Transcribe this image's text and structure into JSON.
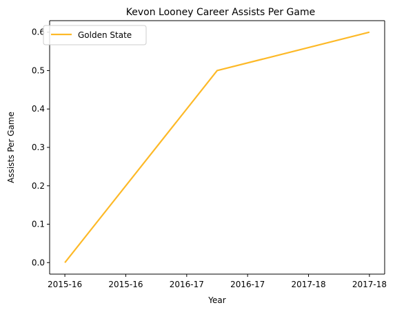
{
  "chart_data": {
    "type": "line",
    "title": "Kevon Looney Career Assists Per Game",
    "xlabel": "Year",
    "ylabel": "Assists Per Game",
    "x_tick_labels": [
      "2015-16",
      "2015-16",
      "2016-17",
      "2016-17",
      "2017-18",
      "2017-18"
    ],
    "x_tick_values": [
      0,
      0.4,
      0.8,
      1.2,
      1.6,
      2.0
    ],
    "xlim": [
      -0.1,
      2.1
    ],
    "y_ticks": [
      0.0,
      0.1,
      0.2,
      0.3,
      0.4,
      0.5,
      0.6
    ],
    "y_tick_labels": [
      "0.0",
      "0.1",
      "0.2",
      "0.3",
      "0.4",
      "0.5",
      "0.6"
    ],
    "ylim": [
      -0.03,
      0.63
    ],
    "grid": false,
    "legend_position": "upper-left",
    "series": [
      {
        "name": "Golden State",
        "color": "#fdb927",
        "x": [
          0,
          1,
          2
        ],
        "x_categories": [
          "2015-16",
          "2016-17",
          "2017-18"
        ],
        "y": [
          0.0,
          0.5,
          0.6
        ]
      }
    ]
  }
}
